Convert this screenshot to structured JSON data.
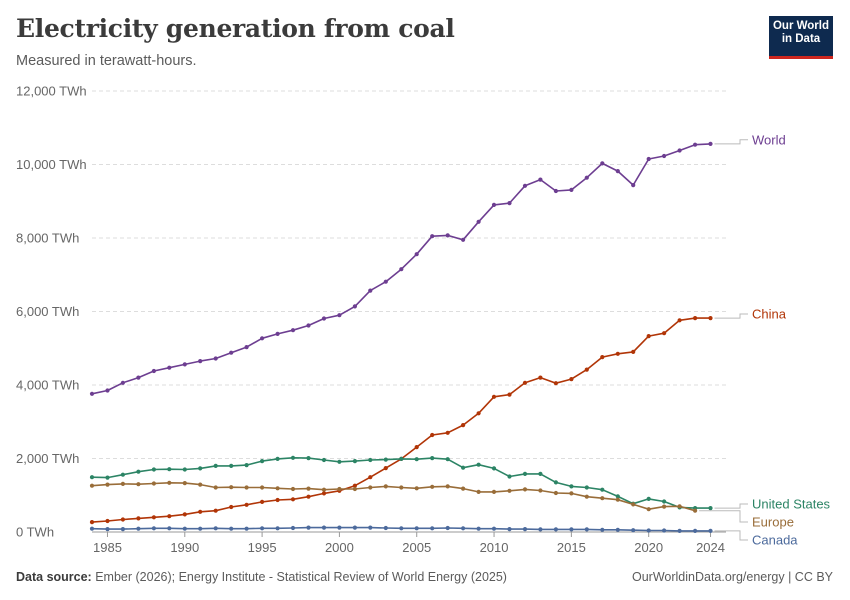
{
  "header": {
    "title": "Electricity generation from coal",
    "subtitle": "Measured in terawatt-hours."
  },
  "logo": {
    "line1": "Our World",
    "line2": "in Data"
  },
  "footer": {
    "source_label": "Data source:",
    "source_text": "Ember (2026); Energy Institute - Statistical Review of World Energy (2025)",
    "right_text": "OurWorldinData.org/energy | CC BY"
  },
  "chart_data": {
    "type": "line",
    "title": "Electricity generation from coal",
    "subtitle": "Measured in terawatt-hours.",
    "xlim": [
      1984,
      2025
    ],
    "ylim": [
      0,
      12000
    ],
    "y_ticks": [
      0,
      2000,
      4000,
      6000,
      8000,
      10000,
      12000
    ],
    "y_tick_labels": [
      "0 TWh",
      "2,000 TWh",
      "4,000 TWh",
      "6,000 TWh",
      "8,000 TWh",
      "10,000 TWh",
      "12,000 TWh"
    ],
    "x_ticks": [
      1985,
      1990,
      1995,
      2000,
      2005,
      2010,
      2015,
      2020,
      2024
    ],
    "x_tick_labels": [
      "1985",
      "1990",
      "1995",
      "2000",
      "2005",
      "2010",
      "2015",
      "2020",
      "2024"
    ],
    "grid": "horizontal dashed",
    "legend": "right, labels at line ends",
    "series": [
      {
        "name": "World",
        "color": "#6d3e91",
        "x": [
          1984,
          1985,
          1986,
          1987,
          1988,
          1989,
          1990,
          1991,
          1992,
          1993,
          1994,
          1995,
          1996,
          1997,
          1998,
          1999,
          2000,
          2001,
          2002,
          2003,
          2004,
          2005,
          2006,
          2007,
          2008,
          2009,
          2010,
          2011,
          2012,
          2013,
          2014,
          2015,
          2016,
          2017,
          2018,
          2019,
          2020,
          2021,
          2022,
          2023,
          2024
        ],
        "values": [
          3760,
          3850,
          4060,
          4200,
          4380,
          4470,
          4560,
          4650,
          4720,
          4880,
          5030,
          5270,
          5390,
          5490,
          5620,
          5810,
          5900,
          6140,
          6570,
          6810,
          7150,
          7560,
          8050,
          8070,
          7950,
          8440,
          8900,
          8950,
          9420,
          9590,
          9280,
          9310,
          9640,
          10030,
          9820,
          9440,
          10150,
          10230,
          10380,
          10540,
          10560
        ]
      },
      {
        "name": "China",
        "color": "#b13507",
        "x": [
          1984,
          1985,
          1986,
          1987,
          1988,
          1989,
          1990,
          1991,
          1992,
          1993,
          1994,
          1995,
          1996,
          1997,
          1998,
          1999,
          2000,
          2001,
          2002,
          2003,
          2004,
          2005,
          2006,
          2007,
          2008,
          2009,
          2010,
          2011,
          2012,
          2013,
          2014,
          2015,
          2016,
          2017,
          2018,
          2019,
          2020,
          2021,
          2022,
          2023,
          2024
        ],
        "values": [
          270,
          300,
          340,
          370,
          400,
          430,
          480,
          550,
          580,
          680,
          740,
          820,
          870,
          890,
          960,
          1050,
          1120,
          1260,
          1490,
          1740,
          1990,
          2310,
          2640,
          2700,
          2910,
          3230,
          3680,
          3740,
          4060,
          4200,
          4050,
          4160,
          4420,
          4760,
          4850,
          4900,
          5330,
          5410,
          5760,
          5820,
          5820
        ]
      },
      {
        "name": "United States",
        "color": "#2c8465",
        "x": [
          1984,
          1985,
          1986,
          1987,
          1988,
          1989,
          1990,
          1991,
          1992,
          1993,
          1994,
          1995,
          1996,
          1997,
          1998,
          1999,
          2000,
          2001,
          2002,
          2003,
          2004,
          2005,
          2006,
          2007,
          2008,
          2009,
          2010,
          2011,
          2012,
          2013,
          2014,
          2015,
          2016,
          2017,
          2018,
          2019,
          2020,
          2021,
          2022,
          2023,
          2024
        ],
        "values": [
          1490,
          1480,
          1560,
          1640,
          1700,
          1710,
          1700,
          1730,
          1800,
          1800,
          1820,
          1930,
          1990,
          2020,
          2010,
          1960,
          1910,
          1930,
          1960,
          1970,
          1990,
          1980,
          2010,
          1980,
          1750,
          1830,
          1730,
          1510,
          1580,
          1580,
          1350,
          1240,
          1210,
          1150,
          970,
          770,
          900,
          830,
          670,
          650,
          650
        ]
      },
      {
        "name": "Europe",
        "color": "#996d39",
        "x": [
          1984,
          1985,
          1986,
          1987,
          1988,
          1989,
          1990,
          1991,
          1992,
          1993,
          1994,
          1995,
          1996,
          1997,
          1998,
          1999,
          2000,
          2001,
          2002,
          2003,
          2004,
          2005,
          2006,
          2007,
          2008,
          2009,
          2010,
          2011,
          2012,
          2013,
          2014,
          2015,
          2016,
          2017,
          2018,
          2019,
          2020,
          2021,
          2022,
          2023
        ],
        "values": [
          1260,
          1290,
          1310,
          1300,
          1320,
          1340,
          1330,
          1290,
          1210,
          1220,
          1210,
          1210,
          1190,
          1170,
          1180,
          1150,
          1170,
          1170,
          1210,
          1240,
          1210,
          1190,
          1230,
          1240,
          1180,
          1090,
          1090,
          1120,
          1160,
          1130,
          1060,
          1050,
          960,
          920,
          880,
          750,
          620,
          690,
          700,
          580
        ]
      },
      {
        "name": "Canada",
        "color": "#4c6a9c",
        "x": [
          1984,
          1985,
          1986,
          1987,
          1988,
          1989,
          1990,
          1991,
          1992,
          1993,
          1994,
          1995,
          1996,
          1997,
          1998,
          1999,
          2000,
          2001,
          2002,
          2003,
          2004,
          2005,
          2006,
          2007,
          2008,
          2009,
          2010,
          2011,
          2012,
          2013,
          2014,
          2015,
          2016,
          2017,
          2018,
          2019,
          2020,
          2021,
          2022,
          2023,
          2024
        ],
        "values": [
          90,
          80,
          80,
          90,
          100,
          100,
          90,
          90,
          100,
          90,
          90,
          100,
          100,
          110,
          120,
          120,
          120,
          120,
          120,
          110,
          100,
          100,
          100,
          110,
          100,
          90,
          90,
          80,
          80,
          70,
          70,
          70,
          70,
          60,
          60,
          50,
          40,
          40,
          30,
          30,
          30
        ]
      }
    ]
  }
}
